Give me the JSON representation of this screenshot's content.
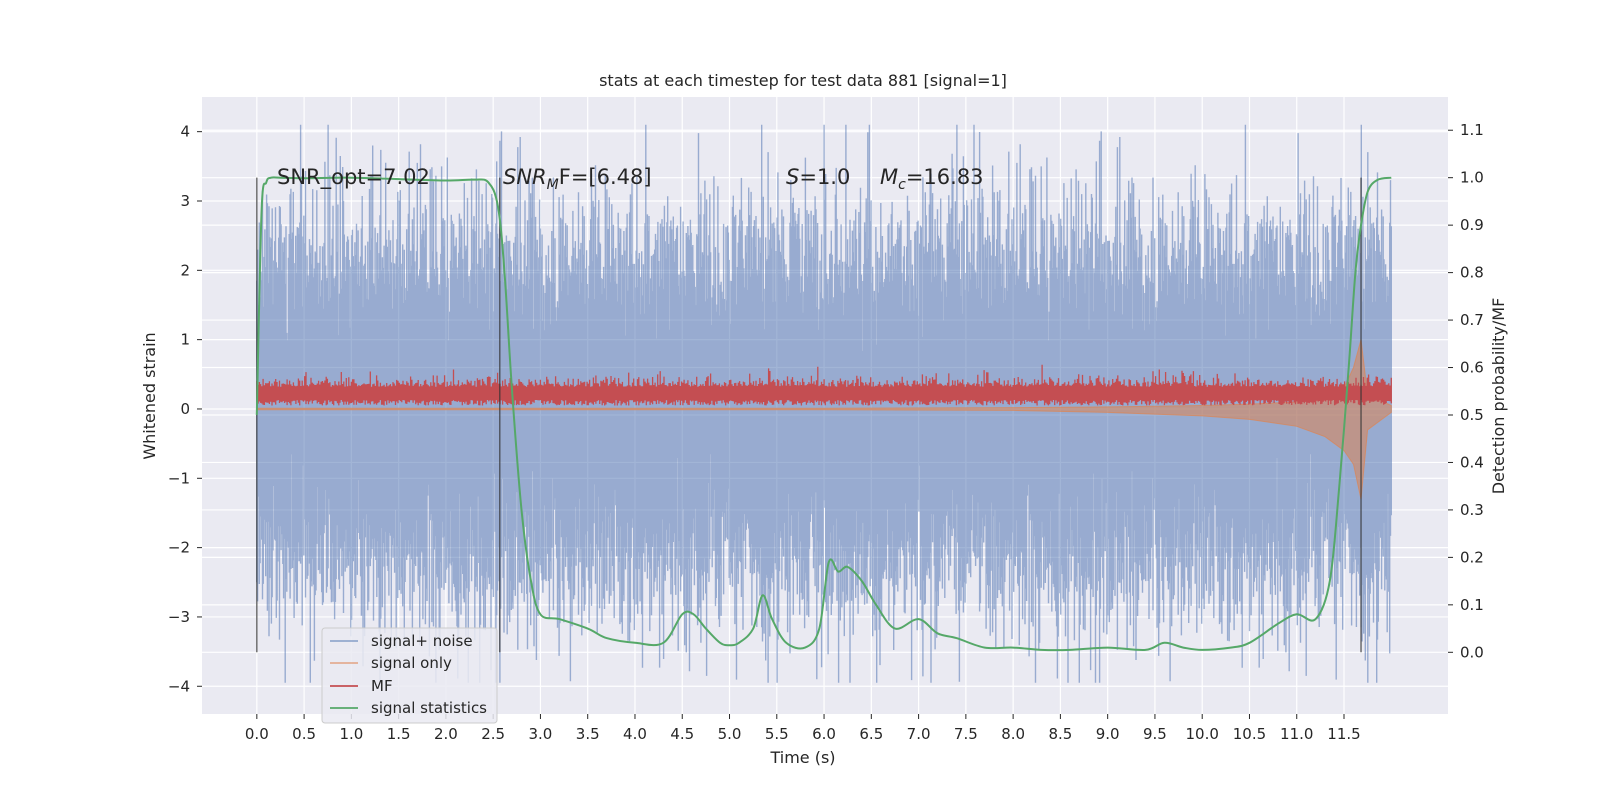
{
  "chart_data": {
    "type": "line",
    "title": "stats at each timestep for test data 881 [signal=1]",
    "xlabel": "Time (s)",
    "ylabel": "Whitened strain",
    "y2label": "Detection probability/MF",
    "xlim": [
      -0.58,
      12.6
    ],
    "ylim": [
      -4.4,
      4.5
    ],
    "y2lim": [
      -0.13,
      1.17
    ],
    "x_ticks": [
      0.0,
      0.5,
      1.0,
      1.5,
      2.0,
      2.5,
      3.0,
      3.5,
      4.0,
      4.5,
      5.0,
      5.5,
      6.0,
      6.5,
      7.0,
      7.5,
      8.0,
      8.5,
      9.0,
      9.5,
      10.0,
      10.5,
      11.0,
      11.5
    ],
    "x_tick_labels": [
      "0.0",
      "0.5",
      "1.0",
      "1.5",
      "2.0",
      "2.5",
      "3.0",
      "3.5",
      "4.0",
      "4.5",
      "5.0",
      "5.5",
      "6.0",
      "6.5",
      "7.0",
      "7.5",
      "8.0",
      "8.5",
      "9.0",
      "9.5",
      "10.0",
      "10.5",
      "11.0",
      "11.5"
    ],
    "y_ticks": [
      -4,
      -3,
      -2,
      -1,
      0,
      1,
      2,
      3,
      4
    ],
    "y_tick_labels": [
      "−4",
      "−3",
      "−2",
      "−1",
      "0",
      "1",
      "2",
      "3",
      "4"
    ],
    "y2_ticks": [
      0.0,
      0.1,
      0.2,
      0.3,
      0.4,
      0.5,
      0.6,
      0.7,
      0.8,
      0.9,
      1.0,
      1.1
    ],
    "y2_tick_labels": [
      "0.0",
      "0.1",
      "0.2",
      "0.3",
      "0.4",
      "0.5",
      "0.6",
      "0.7",
      "0.8",
      "0.9",
      "1.0",
      "1.1"
    ],
    "grid": true,
    "legend_position": "lower-left",
    "annotations": {
      "snr_opt": "SNR_opt=7.02",
      "snr_mf_main": "SNR",
      "snr_mf_sub": "M",
      "snr_mf_rest": "F=[6.48]",
      "s_italic": "S",
      "s_rest": "=1.0",
      "mc_main": "M",
      "mc_sub": "c",
      "mc_rest": "=16.83"
    },
    "vertical_markers": [
      0.0,
      2.57,
      11.68
    ],
    "series": [
      {
        "name": "signal+ noise",
        "color": "#4c72b0",
        "description_of_shape": "dense noise approx. within [-3, 3] over [0, 12]",
        "envelope_x": [
          0,
          12
        ],
        "typical_amplitude": [
          -2.0,
          2.0
        ],
        "peak_amplitude": [
          -3.95,
          4.1
        ]
      },
      {
        "name": "signal only",
        "color": "#dd8452",
        "description_of_shape": "chirp growing toward the merger at 11.7 s",
        "x": [
          0,
          6,
          8,
          9,
          10,
          10.5,
          11,
          11.3,
          11.5,
          11.6,
          11.68,
          11.75,
          12
        ],
        "upper": [
          0.01,
          0.01,
          0.02,
          0.03,
          0.05,
          0.07,
          0.1,
          0.15,
          0.3,
          0.6,
          1.0,
          0.2,
          0.05
        ],
        "lower": [
          -0.01,
          -0.01,
          -0.02,
          -0.05,
          -0.1,
          -0.15,
          -0.25,
          -0.4,
          -0.6,
          -0.8,
          -1.3,
          -0.3,
          -0.05
        ]
      },
      {
        "name": "MF",
        "color": "#c44e52",
        "description_of_shape": "narrow band around 0.25 with small spikes",
        "band": [
          0.05,
          0.5
        ],
        "peak": 0.65
      },
      {
        "name": "signal statistics",
        "color": "#55a868",
        "axis": "right",
        "x": [
          0.0,
          0.05,
          0.1,
          0.15,
          0.25,
          0.5,
          1.0,
          1.5,
          2.0,
          2.3,
          2.45,
          2.55,
          2.62,
          2.7,
          2.8,
          2.9,
          3.0,
          3.2,
          3.5,
          3.7,
          4.0,
          4.3,
          4.5,
          4.62,
          4.75,
          4.9,
          5.0,
          5.1,
          5.25,
          5.35,
          5.45,
          5.6,
          5.8,
          5.95,
          6.05,
          6.15,
          6.25,
          6.4,
          6.55,
          6.75,
          7.0,
          7.2,
          7.4,
          7.7,
          8.0,
          8.3,
          8.6,
          9.0,
          9.4,
          9.6,
          9.8,
          10.0,
          10.3,
          10.5,
          10.8,
          11.0,
          11.2,
          11.35,
          11.45,
          11.55,
          11.62,
          11.68,
          11.75,
          11.85,
          12.0
        ],
        "values": [
          0.5,
          0.93,
          0.99,
          1.0,
          1.0,
          0.999,
          1.0,
          0.997,
          0.994,
          0.996,
          0.99,
          0.94,
          0.8,
          0.55,
          0.3,
          0.15,
          0.08,
          0.07,
          0.05,
          0.03,
          0.02,
          0.02,
          0.08,
          0.08,
          0.05,
          0.02,
          0.015,
          0.02,
          0.05,
          0.12,
          0.07,
          0.02,
          0.01,
          0.05,
          0.19,
          0.17,
          0.18,
          0.15,
          0.1,
          0.05,
          0.07,
          0.04,
          0.03,
          0.01,
          0.01,
          0.005,
          0.005,
          0.01,
          0.005,
          0.02,
          0.01,
          0.005,
          0.01,
          0.02,
          0.06,
          0.08,
          0.07,
          0.15,
          0.35,
          0.6,
          0.8,
          0.9,
          0.97,
          0.995,
          1.0
        ]
      }
    ]
  }
}
